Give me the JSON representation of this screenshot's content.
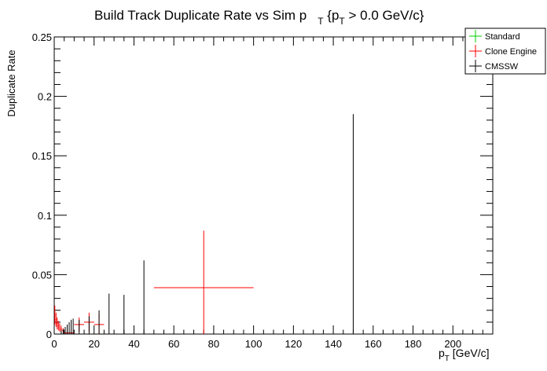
{
  "chart_data": {
    "type": "scatter",
    "title": {
      "main": "Build Track Duplicate Rate vs Sim p",
      "sub1": "T",
      "tail1": " {p",
      "sub2": "T",
      "tail2": " > 0.0 GeV/c}"
    },
    "xlabel": {
      "main": "p",
      "sub": "T",
      "tail": " [GeV/c]"
    },
    "ylabel": "Duplicate Rate",
    "xlim": [
      0,
      220
    ],
    "ylim": [
      0,
      0.25
    ],
    "x_ticks": [
      0,
      20,
      40,
      60,
      80,
      100,
      120,
      140,
      160,
      180,
      200
    ],
    "y_ticks": [
      0,
      0.05,
      0.1,
      0.15,
      0.2,
      0.25
    ],
    "y_tick_labels": [
      "0",
      "0.05",
      "0.1",
      "0.15",
      "0.2",
      "0.25"
    ],
    "legend": {
      "placement": "top-right",
      "entries": [
        {
          "name": "Standard",
          "color": "#00cc00"
        },
        {
          "name": "Clone Engine",
          "color": "#ff0000"
        },
        {
          "name": "CMSSW",
          "color": "#000000"
        }
      ]
    },
    "series": [
      {
        "name": "Standard",
        "color": "#00cc00",
        "points": []
      },
      {
        "name": "Clone Engine",
        "color": "#ff0000",
        "points": [
          {
            "x": 0.3,
            "xerr": 0.3,
            "y": 0.016,
            "yerr": 0.008
          },
          {
            "x": 0.9,
            "xerr": 0.3,
            "y": 0.012,
            "yerr": 0.006
          },
          {
            "x": 1.5,
            "xerr": 0.3,
            "y": 0.009,
            "yerr": 0.005
          },
          {
            "x": 2.1,
            "xerr": 0.3,
            "y": 0.007,
            "yerr": 0.004
          },
          {
            "x": 2.75,
            "xerr": 0.25,
            "y": 0.0055,
            "yerr": 0.0035
          },
          {
            "x": 3.5,
            "xerr": 0.5,
            "y": 0.004,
            "yerr": 0.003
          },
          {
            "x": 4.5,
            "xerr": 0.5,
            "y": 0.003,
            "yerr": 0.002
          },
          {
            "x": 7.5,
            "xerr": 2.5,
            "y": 0.001,
            "yerr": 0.002
          },
          {
            "x": 12.5,
            "xerr": 2.5,
            "y": 0.008,
            "yerr": 0.006
          },
          {
            "x": 17.5,
            "xerr": 2.5,
            "y": 0.01,
            "yerr": 0.008
          },
          {
            "x": 22.5,
            "xerr": 2.5,
            "y": 0.008,
            "yerr": 0.009
          },
          {
            "x": 75,
            "xerr": 25,
            "y": 0.039,
            "yerr": 0.048
          }
        ]
      },
      {
        "name": "CMSSW",
        "color": "#000000",
        "points": [
          {
            "x": 3.5,
            "xerr": 0,
            "y": 0,
            "yerr": 0.003
          },
          {
            "x": 4.5,
            "xerr": 0,
            "y": 0,
            "yerr": 0.004
          },
          {
            "x": 5.5,
            "xerr": 0,
            "y": 0,
            "yerr": 0.006
          },
          {
            "x": 6.5,
            "xerr": 0,
            "y": 0,
            "yerr": 0.008
          },
          {
            "x": 7.5,
            "xerr": 0,
            "y": 0,
            "yerr": 0.01
          },
          {
            "x": 8.5,
            "xerr": 0,
            "y": 0,
            "yerr": 0.012
          },
          {
            "x": 9.5,
            "xerr": 0,
            "y": 0,
            "yerr": 0.013
          },
          {
            "x": 12.5,
            "xerr": 0,
            "y": 0,
            "yerr": 0.012
          },
          {
            "x": 17.5,
            "xerr": 0,
            "y": 0,
            "yerr": 0.015
          },
          {
            "x": 22.5,
            "xerr": 0,
            "y": 0,
            "yerr": 0.02
          },
          {
            "x": 27.5,
            "xerr": 0,
            "y": 0,
            "yerr": 0.034
          },
          {
            "x": 35,
            "xerr": 0,
            "y": 0,
            "yerr": 0.033
          },
          {
            "x": 45,
            "xerr": 0,
            "y": 0,
            "yerr": 0.062
          },
          {
            "x": 150,
            "xerr": 0,
            "y": 0,
            "yerr": 0.185
          }
        ]
      }
    ],
    "grid": false
  }
}
